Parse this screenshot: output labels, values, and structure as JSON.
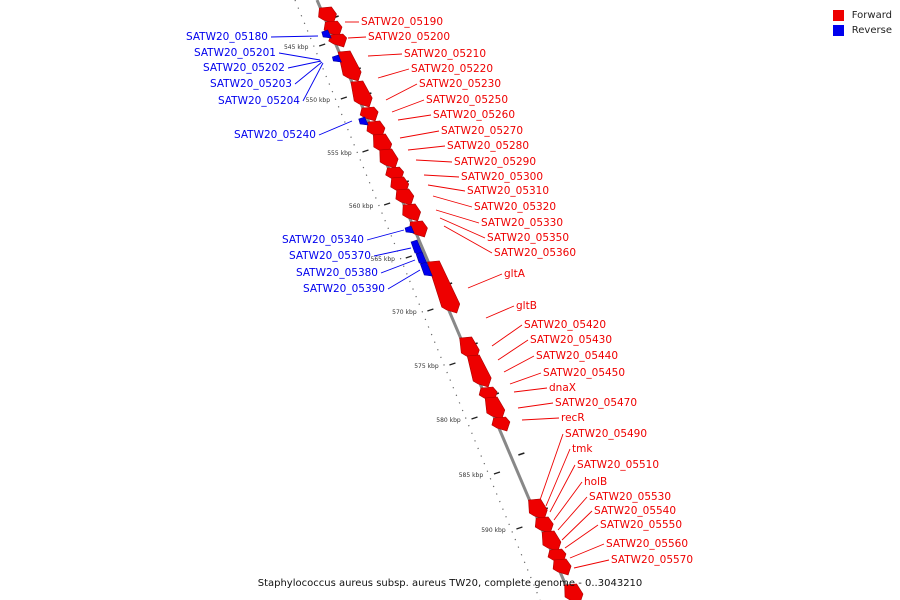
{
  "colors": {
    "forward": "#ee0000",
    "reverse": "#0000ee",
    "backbone": "#888888",
    "tick": "#222222"
  },
  "legend": [
    {
      "label": "Forward",
      "color": "#ee0000"
    },
    {
      "label": "Reverse",
      "color": "#0000ee"
    }
  ],
  "footer": "Staphylococcus aureus subsp. aureus TW20, complete genome - 0..3043210",
  "ticks": [
    {
      "kbp": 545,
      "label": "545 kbp"
    },
    {
      "kbp": 550,
      "label": "550 kbp"
    },
    {
      "kbp": 555,
      "label": "555 kbp"
    },
    {
      "kbp": 560,
      "label": "560 kbp"
    },
    {
      "kbp": 565,
      "label": "565 kbp"
    },
    {
      "kbp": 570,
      "label": "570 kbp"
    },
    {
      "kbp": 575,
      "label": "575 kbp"
    },
    {
      "kbp": 580,
      "label": "580 kbp"
    },
    {
      "kbp": 585,
      "label": "585 kbp"
    },
    {
      "kbp": 590,
      "label": "590 kbp"
    }
  ],
  "reverse_genes": [
    "SATW20_05180",
    "SATW20_05201",
    "SATW20_05202",
    "SATW20_05203",
    "SATW20_05204",
    "SATW20_05240",
    "SATW20_05340",
    "SATW20_05370",
    "SATW20_05380",
    "SATW20_05390"
  ],
  "forward_genes": [
    "SATW20_05190",
    "SATW20_05200",
    "SATW20_05210",
    "SATW20_05220",
    "SATW20_05230",
    "SATW20_05250",
    "SATW20_05260",
    "SATW20_05270",
    "SATW20_05280",
    "SATW20_05290",
    "SATW20_05300",
    "SATW20_05310",
    "SATW20_05320",
    "SATW20_05330",
    "SATW20_05350",
    "SATW20_05360",
    "gltA",
    "gltB",
    "SATW20_05420",
    "SATW20_05430",
    "SATW20_05440",
    "SATW20_05450",
    "dnaX",
    "SATW20_05470",
    "recR",
    "SATW20_05490",
    "tmk",
    "SATW20_05510",
    "holB",
    "SATW20_05530",
    "SATW20_05540",
    "SATW20_05550",
    "SATW20_05560",
    "SATW20_05570"
  ]
}
